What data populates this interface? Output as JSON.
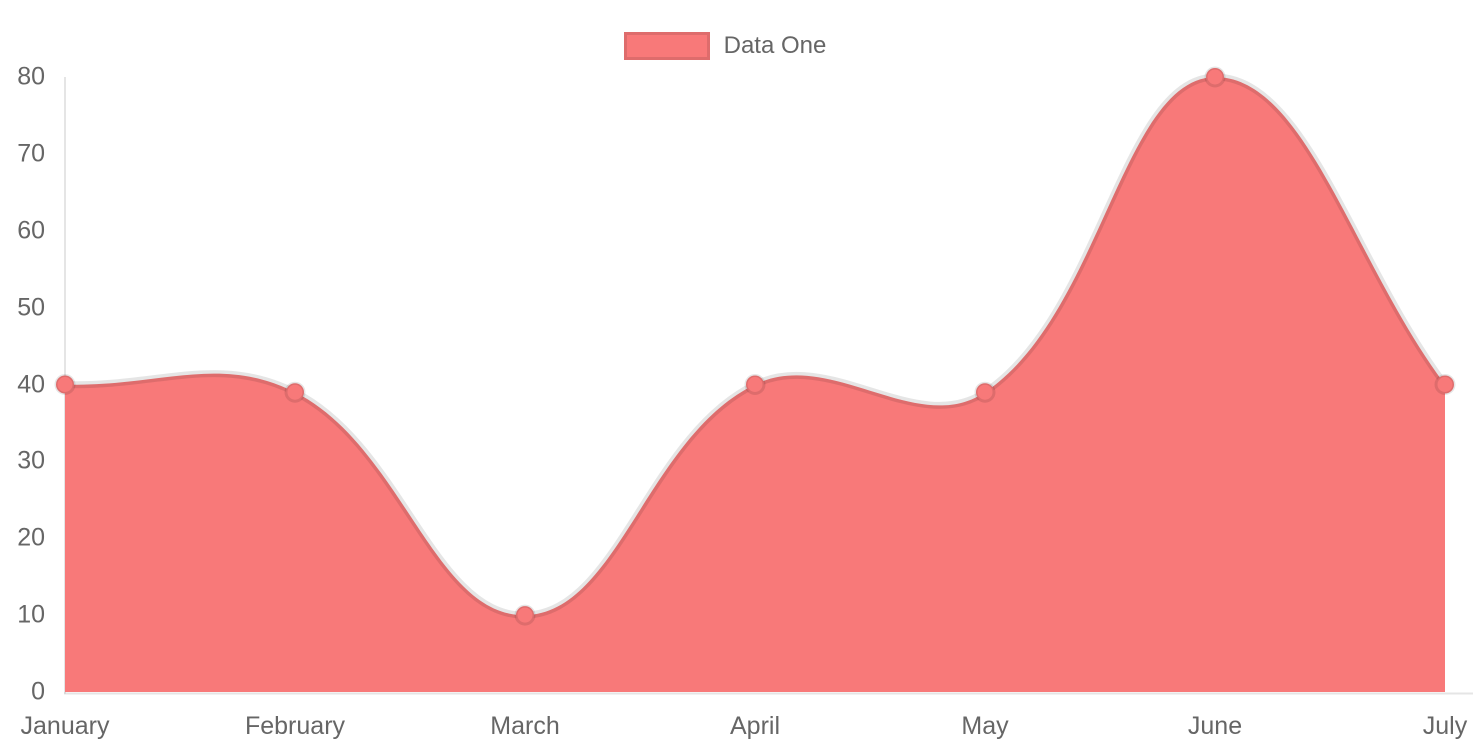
{
  "chart_data": {
    "type": "area",
    "categories": [
      "January",
      "February",
      "March",
      "April",
      "May",
      "June",
      "July"
    ],
    "series": [
      {
        "name": "Data One",
        "values": [
          40,
          39,
          10,
          40,
          39,
          80,
          40
        ]
      }
    ],
    "ylim": [
      0,
      80
    ],
    "yticks": [
      0,
      10,
      20,
      30,
      40,
      50,
      60,
      70,
      80
    ],
    "xlabel": "",
    "ylabel": "",
    "title": "",
    "grid": false,
    "legend_position": "top",
    "line_tension": 0.4,
    "colors": {
      "fill": "#f87979",
      "line": "rgba(0,0,0,0.1)",
      "axis": "rgba(0,0,0,0.1)",
      "tick_text": "#666666"
    }
  },
  "legend": {
    "label": "Data One"
  }
}
